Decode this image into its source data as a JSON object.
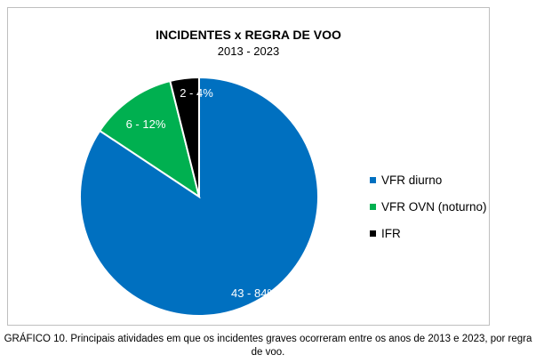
{
  "chart_data": {
    "type": "pie",
    "title": "INCIDENTES x REGRA DE VOO",
    "subtitle": "2013 - 2023",
    "slices": [
      {
        "name": "VFR diurno",
        "value": 43,
        "percent": 84,
        "label": "43 - 84%",
        "color": "#0070C0"
      },
      {
        "name": "VFR OVN (noturno)",
        "value": 6,
        "percent": 12,
        "label": "6 - 12%",
        "color": "#00B050"
      },
      {
        "name": "IFR",
        "value": 2,
        "percent": 4,
        "label": "2 - 4%",
        "color": "#000000"
      }
    ],
    "legend_position": "right"
  },
  "caption": "GRÁFICO 10. Principais atividades em que os incidentes graves ocorreram entre os anos de 2013 e 2023, por regra de voo."
}
